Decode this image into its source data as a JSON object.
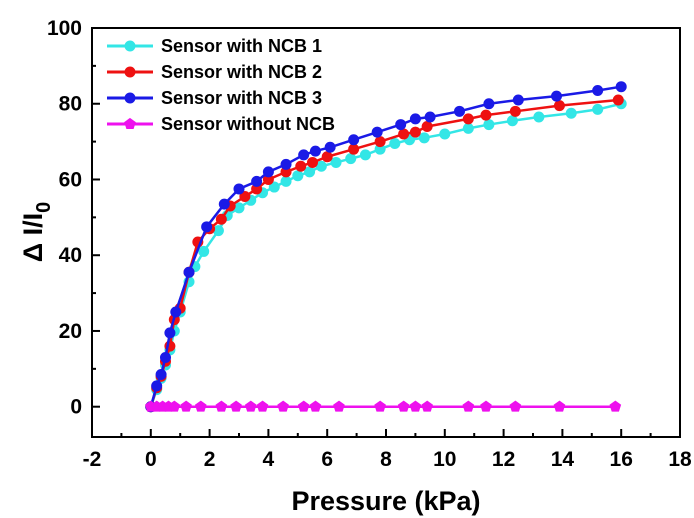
{
  "chart_data": {
    "type": "line",
    "xlabel": "Pressure (kPa)",
    "ylabel_main": "Δ I/I",
    "ylabel_sub": "0",
    "xlim": [
      -2,
      18
    ],
    "ylim": [
      -8,
      100
    ],
    "x_ticks": [
      -2,
      0,
      2,
      4,
      6,
      8,
      10,
      12,
      14,
      16,
      18
    ],
    "y_ticks": [
      0,
      20,
      40,
      60,
      80,
      100
    ],
    "legend_position": "top-left",
    "series": [
      {
        "name": "Sensor with NCB 1",
        "color": "#33e6e6",
        "marker": "circle",
        "points": [
          [
            0.0,
            0.0
          ],
          [
            0.2,
            4.5
          ],
          [
            0.35,
            7.5
          ],
          [
            0.5,
            11.0
          ],
          [
            0.65,
            15.0
          ],
          [
            0.8,
            20.0
          ],
          [
            1.0,
            25.0
          ],
          [
            1.3,
            33.0
          ],
          [
            1.5,
            37.0
          ],
          [
            1.8,
            41.0
          ],
          [
            2.3,
            46.5
          ],
          [
            2.6,
            50.5
          ],
          [
            3.0,
            52.5
          ],
          [
            3.4,
            54.5
          ],
          [
            3.8,
            56.5
          ],
          [
            4.2,
            58.0
          ],
          [
            4.6,
            59.5
          ],
          [
            5.0,
            61.0
          ],
          [
            5.4,
            62.0
          ],
          [
            5.8,
            63.5
          ],
          [
            6.3,
            64.5
          ],
          [
            6.8,
            65.5
          ],
          [
            7.3,
            66.5
          ],
          [
            7.8,
            68.0
          ],
          [
            8.3,
            69.5
          ],
          [
            8.8,
            70.5
          ],
          [
            9.3,
            71.0
          ],
          [
            10.0,
            72.0
          ],
          [
            10.8,
            73.5
          ],
          [
            11.5,
            74.5
          ],
          [
            12.3,
            75.5
          ],
          [
            13.2,
            76.5
          ],
          [
            14.3,
            77.5
          ],
          [
            15.2,
            78.5
          ],
          [
            16.0,
            80.0
          ]
        ]
      },
      {
        "name": "Sensor with NCB 2",
        "color": "#ee1111",
        "marker": "circle",
        "points": [
          [
            0.0,
            0.0
          ],
          [
            0.2,
            5.0
          ],
          [
            0.35,
            8.0
          ],
          [
            0.5,
            12.0
          ],
          [
            0.65,
            16.0
          ],
          [
            0.8,
            23.0
          ],
          [
            1.0,
            26.0
          ],
          [
            1.3,
            35.5
          ],
          [
            1.6,
            43.5
          ],
          [
            2.0,
            47.0
          ],
          [
            2.4,
            49.5
          ],
          [
            2.7,
            53.0
          ],
          [
            3.2,
            55.5
          ],
          [
            3.6,
            57.5
          ],
          [
            4.0,
            60.0
          ],
          [
            4.6,
            62.0
          ],
          [
            5.1,
            63.5
          ],
          [
            5.5,
            64.5
          ],
          [
            6.0,
            66.0
          ],
          [
            6.9,
            68.0
          ],
          [
            7.8,
            70.0
          ],
          [
            8.6,
            72.0
          ],
          [
            9.0,
            72.5
          ],
          [
            9.4,
            74.0
          ],
          [
            10.8,
            76.0
          ],
          [
            11.4,
            77.0
          ],
          [
            12.4,
            78.0
          ],
          [
            13.9,
            79.5
          ],
          [
            15.9,
            81.0
          ]
        ]
      },
      {
        "name": "Sensor with NCB 3",
        "color": "#1a1ae6",
        "marker": "circle",
        "points": [
          [
            0.0,
            0.0
          ],
          [
            0.2,
            5.5
          ],
          [
            0.35,
            8.5
          ],
          [
            0.5,
            13.0
          ],
          [
            0.65,
            19.5
          ],
          [
            0.85,
            25.0
          ],
          [
            1.3,
            35.5
          ],
          [
            1.9,
            47.5
          ],
          [
            2.5,
            53.5
          ],
          [
            3.0,
            57.5
          ],
          [
            3.6,
            59.5
          ],
          [
            4.0,
            62.0
          ],
          [
            4.6,
            64.0
          ],
          [
            5.2,
            66.5
          ],
          [
            5.6,
            67.5
          ],
          [
            6.1,
            68.5
          ],
          [
            6.9,
            70.5
          ],
          [
            7.7,
            72.5
          ],
          [
            8.5,
            74.5
          ],
          [
            9.0,
            76.0
          ],
          [
            9.5,
            76.5
          ],
          [
            10.5,
            78.0
          ],
          [
            11.5,
            80.0
          ],
          [
            12.5,
            81.0
          ],
          [
            13.8,
            82.0
          ],
          [
            15.2,
            83.5
          ],
          [
            16.0,
            84.5
          ]
        ]
      },
      {
        "name": "Sensor without NCB",
        "color": "#ee11ee",
        "marker": "pentagon",
        "points": [
          [
            0.0,
            0.0
          ],
          [
            0.2,
            0.0
          ],
          [
            0.4,
            0.0
          ],
          [
            0.6,
            0.0
          ],
          [
            0.8,
            0.0
          ],
          [
            1.2,
            0.0
          ],
          [
            1.7,
            0.0
          ],
          [
            2.4,
            0.0
          ],
          [
            2.9,
            0.0
          ],
          [
            3.4,
            0.0
          ],
          [
            3.8,
            0.0
          ],
          [
            4.5,
            0.0
          ],
          [
            5.2,
            0.0
          ],
          [
            5.6,
            0.0
          ],
          [
            6.4,
            0.0
          ],
          [
            7.8,
            0.0
          ],
          [
            8.6,
            0.0
          ],
          [
            9.0,
            0.0
          ],
          [
            9.4,
            0.0
          ],
          [
            10.8,
            0.0
          ],
          [
            11.4,
            0.0
          ],
          [
            12.4,
            0.0
          ],
          [
            13.9,
            0.0
          ],
          [
            15.8,
            0.0
          ]
        ]
      }
    ]
  }
}
